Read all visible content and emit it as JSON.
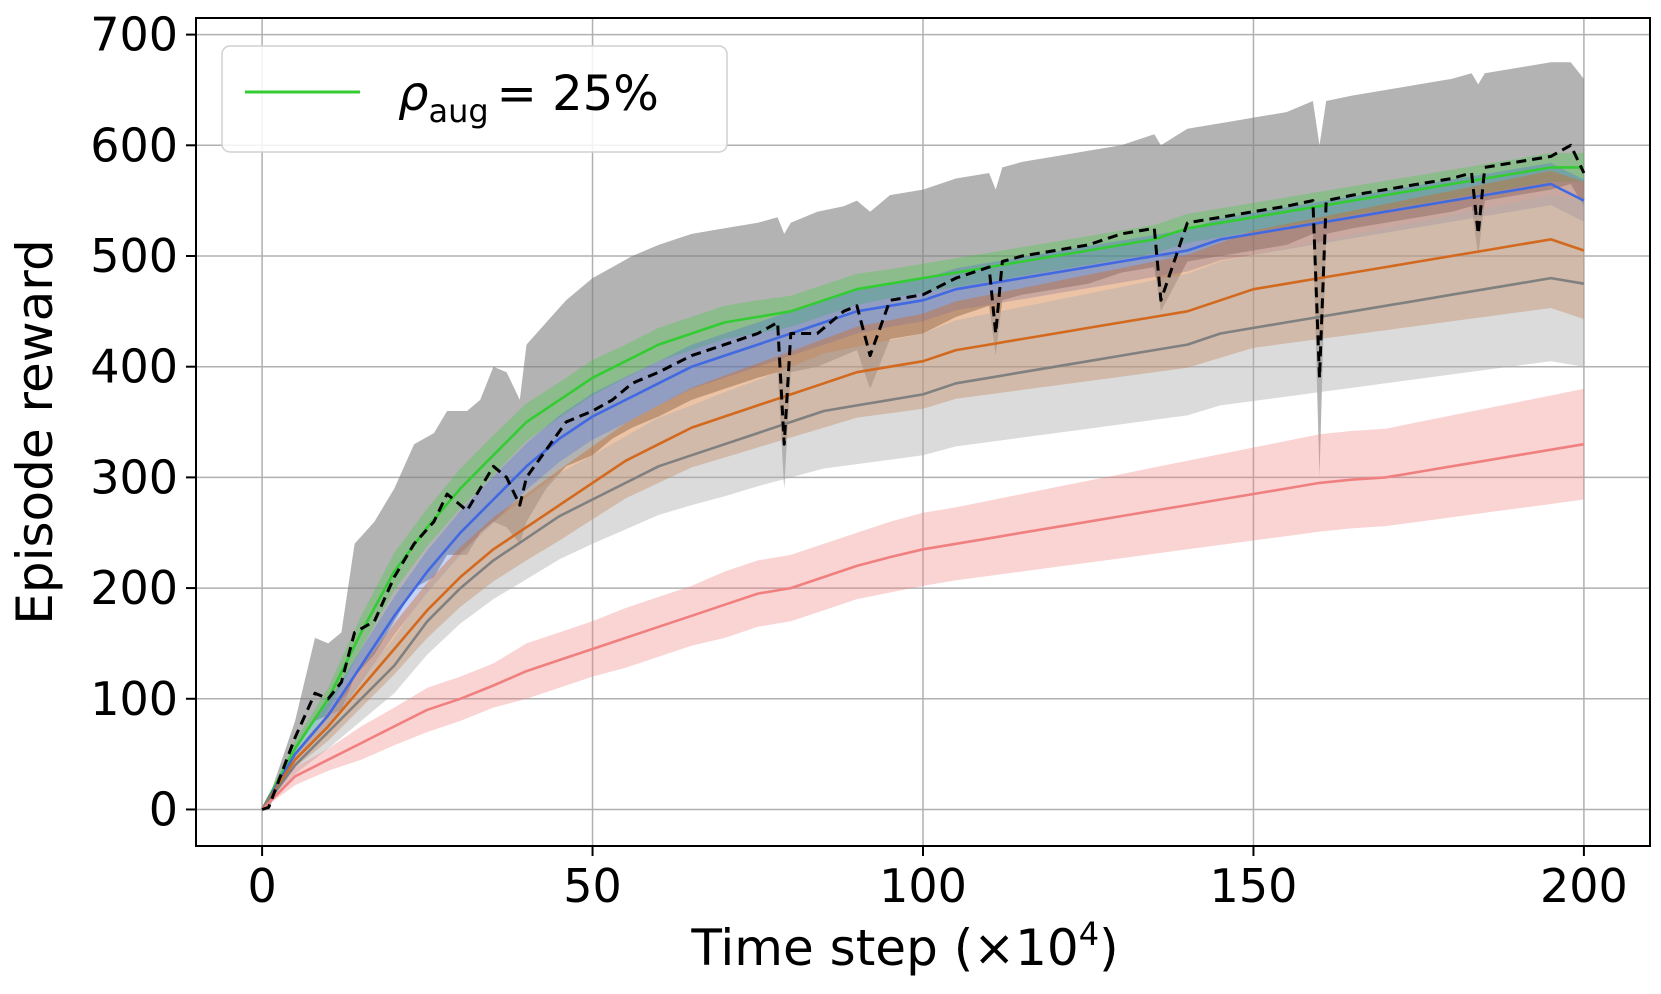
{
  "chart_data": {
    "type": "line",
    "xlabel": "Time step (×10",
    "xlabel_exponent": "4",
    "xlabel_close": ")",
    "ylabel": "Episode reward",
    "xlim": [
      -10,
      210
    ],
    "ylim": [
      -33,
      715
    ],
    "xticks": [
      0,
      50,
      100,
      150,
      200
    ],
    "xtick_labels": [
      "0",
      "50",
      "100",
      "150",
      "200"
    ],
    "yticks": [
      0,
      100,
      200,
      300,
      400,
      500,
      600,
      700
    ],
    "ytick_labels": [
      "0",
      "100",
      "200",
      "300",
      "400",
      "500",
      "600",
      "700"
    ],
    "grid": true,
    "legend": {
      "placement": "top-left",
      "symbol": "ρ",
      "subscript": "aug",
      "value_text": "= 25%",
      "color": "#33cc33"
    },
    "series": [
      {
        "name": "black-dashed",
        "color": "#000000",
        "dashed": true,
        "band_color": "#808080",
        "band_opacity": 0.6,
        "x": [
          0,
          1,
          5,
          8,
          10,
          12,
          14,
          17,
          20,
          23,
          26,
          28,
          31,
          33,
          35,
          37,
          39,
          40,
          43,
          46,
          50,
          53,
          56,
          60,
          65,
          70,
          75,
          78,
          79,
          80,
          84,
          88,
          90,
          92,
          95,
          100,
          105,
          110,
          111,
          112,
          115,
          120,
          125,
          130,
          135,
          136,
          140,
          145,
          150,
          155,
          159,
          160,
          161,
          165,
          170,
          175,
          180,
          183,
          184,
          185,
          190,
          195,
          198,
          200
        ],
        "values": [
          0,
          2,
          65,
          105,
          100,
          115,
          160,
          170,
          210,
          240,
          260,
          285,
          270,
          290,
          310,
          300,
          275,
          300,
          325,
          350,
          360,
          370,
          385,
          395,
          410,
          420,
          430,
          440,
          330,
          430,
          430,
          450,
          455,
          410,
          460,
          465,
          480,
          490,
          430,
          495,
          500,
          505,
          510,
          520,
          525,
          460,
          530,
          535,
          540,
          545,
          550,
          390,
          550,
          555,
          560,
          565,
          570,
          575,
          520,
          580,
          585,
          590,
          600,
          575
        ],
        "lower": [
          0,
          0,
          55,
          80,
          85,
          90,
          120,
          140,
          170,
          200,
          210,
          230,
          230,
          250,
          260,
          255,
          240,
          260,
          290,
          310,
          320,
          335,
          345,
          355,
          370,
          380,
          390,
          395,
          290,
          395,
          400,
          410,
          415,
          380,
          425,
          430,
          445,
          455,
          410,
          460,
          465,
          470,
          475,
          485,
          490,
          450,
          495,
          500,
          505,
          510,
          520,
          300,
          520,
          525,
          530,
          535,
          540,
          545,
          500,
          550,
          555,
          560,
          565,
          545
        ],
        "upper": [
          0,
          10,
          80,
          155,
          150,
          160,
          240,
          260,
          290,
          330,
          340,
          360,
          360,
          370,
          400,
          395,
          370,
          420,
          440,
          460,
          480,
          490,
          500,
          510,
          520,
          525,
          530,
          535,
          520,
          530,
          540,
          545,
          550,
          540,
          555,
          560,
          570,
          575,
          560,
          580,
          585,
          590,
          595,
          600,
          610,
          600,
          615,
          620,
          625,
          630,
          640,
          600,
          640,
          645,
          650,
          655,
          660,
          665,
          655,
          665,
          670,
          675,
          675,
          660
        ]
      },
      {
        "name": "green",
        "color": "#33cc33",
        "dashed": false,
        "band_color": "#33cc33",
        "band_opacity": 0.3,
        "x": [
          0,
          5,
          10,
          15,
          20,
          25,
          30,
          35,
          40,
          45,
          50,
          55,
          60,
          65,
          70,
          75,
          80,
          85,
          90,
          95,
          100,
          105,
          110,
          115,
          120,
          125,
          130,
          135,
          140,
          145,
          150,
          155,
          160,
          165,
          170,
          175,
          180,
          185,
          190,
          195,
          200
        ],
        "values": [
          0,
          55,
          100,
          160,
          215,
          255,
          290,
          320,
          350,
          370,
          390,
          405,
          420,
          430,
          440,
          445,
          450,
          460,
          470,
          475,
          480,
          485,
          490,
          495,
          500,
          505,
          510,
          515,
          525,
          530,
          535,
          540,
          545,
          550,
          555,
          560,
          565,
          570,
          575,
          580,
          580
        ],
        "lower": [
          0,
          48,
          90,
          145,
          198,
          238,
          272,
          302,
          333,
          354,
          374,
          390,
          405,
          415,
          425,
          430,
          436,
          446,
          456,
          462,
          467,
          472,
          477,
          482,
          487,
          492,
          497,
          502,
          512,
          517,
          522,
          527,
          532,
          537,
          542,
          547,
          552,
          557,
          562,
          567,
          567
        ],
        "upper": [
          0,
          62,
          110,
          175,
          232,
          272,
          308,
          338,
          367,
          386,
          406,
          420,
          435,
          445,
          455,
          460,
          464,
          474,
          484,
          488,
          493,
          498,
          503,
          508,
          513,
          518,
          523,
          528,
          538,
          543,
          548,
          553,
          558,
          563,
          568,
          573,
          578,
          583,
          588,
          593,
          593
        ]
      },
      {
        "name": "blue",
        "color": "#4169e1",
        "dashed": false,
        "band_color": "#4169e1",
        "band_opacity": 0.3,
        "x": [
          0,
          5,
          10,
          15,
          20,
          25,
          30,
          35,
          40,
          45,
          50,
          55,
          60,
          65,
          70,
          75,
          80,
          85,
          90,
          95,
          100,
          105,
          110,
          115,
          120,
          125,
          130,
          135,
          140,
          145,
          150,
          155,
          160,
          165,
          170,
          175,
          180,
          185,
          190,
          195,
          200
        ],
        "values": [
          0,
          50,
          85,
          130,
          175,
          215,
          250,
          280,
          310,
          335,
          355,
          370,
          385,
          400,
          410,
          420,
          430,
          440,
          450,
          455,
          460,
          470,
          475,
          480,
          485,
          490,
          495,
          500,
          505,
          515,
          520,
          525,
          530,
          535,
          540,
          545,
          550,
          555,
          560,
          565,
          550
        ],
        "lower": [
          0,
          43,
          73,
          115,
          158,
          196,
          230,
          259,
          289,
          314,
          334,
          349,
          365,
          380,
          390,
          400,
          410,
          420,
          430,
          436,
          441,
          451,
          456,
          461,
          466,
          471,
          476,
          481,
          486,
          496,
          501,
          506,
          511,
          516,
          521,
          526,
          531,
          536,
          541,
          546,
          531
        ],
        "upper": [
          0,
          57,
          97,
          145,
          192,
          234,
          270,
          301,
          331,
          356,
          376,
          391,
          405,
          420,
          430,
          440,
          450,
          460,
          470,
          474,
          479,
          489,
          494,
          499,
          504,
          509,
          514,
          519,
          524,
          534,
          539,
          544,
          549,
          554,
          559,
          564,
          569,
          574,
          579,
          584,
          569
        ]
      },
      {
        "name": "orange",
        "color": "#d2691e",
        "dashed": false,
        "band_color": "#d2691e",
        "band_opacity": 0.4,
        "x": [
          0,
          5,
          10,
          15,
          20,
          25,
          30,
          35,
          40,
          45,
          50,
          55,
          60,
          65,
          70,
          75,
          80,
          85,
          90,
          95,
          100,
          105,
          110,
          115,
          120,
          125,
          130,
          135,
          140,
          145,
          150,
          155,
          160,
          165,
          170,
          175,
          180,
          185,
          190,
          195,
          200
        ],
        "values": [
          0,
          45,
          75,
          110,
          145,
          180,
          210,
          235,
          255,
          275,
          295,
          315,
          330,
          345,
          355,
          365,
          375,
          385,
          395,
          400,
          405,
          415,
          420,
          425,
          430,
          435,
          440,
          445,
          450,
          460,
          470,
          475,
          480,
          485,
          490,
          495,
          500,
          505,
          510,
          515,
          505
        ],
        "lower": [
          0,
          38,
          62,
          92,
          122,
          155,
          183,
          206,
          225,
          243,
          262,
          281,
          295,
          309,
          318,
          327,
          336,
          345,
          354,
          358,
          362,
          371,
          375,
          379,
          383,
          387,
          391,
          395,
          399,
          408,
          417,
          421,
          425,
          429,
          433,
          437,
          441,
          445,
          449,
          453,
          443
        ],
        "upper": [
          0,
          52,
          88,
          128,
          168,
          205,
          237,
          264,
          285,
          307,
          328,
          349,
          365,
          381,
          392,
          403,
          414,
          425,
          436,
          442,
          448,
          459,
          465,
          471,
          477,
          483,
          489,
          495,
          501,
          512,
          523,
          529,
          535,
          541,
          547,
          553,
          559,
          565,
          571,
          577,
          567
        ]
      },
      {
        "name": "gray",
        "color": "#808080",
        "dashed": false,
        "band_color": "#b0b0b0",
        "band_opacity": 0.45,
        "x": [
          0,
          5,
          10,
          15,
          20,
          25,
          30,
          35,
          40,
          45,
          50,
          55,
          60,
          65,
          70,
          75,
          80,
          85,
          90,
          95,
          100,
          105,
          110,
          115,
          120,
          125,
          130,
          135,
          140,
          145,
          150,
          155,
          160,
          165,
          170,
          175,
          180,
          185,
          190,
          195,
          200
        ],
        "values": [
          0,
          40,
          70,
          100,
          130,
          170,
          200,
          225,
          245,
          265,
          280,
          295,
          310,
          320,
          330,
          340,
          350,
          360,
          365,
          370,
          375,
          385,
          390,
          395,
          400,
          405,
          410,
          415,
          420,
          430,
          435,
          440,
          445,
          450,
          455,
          460,
          465,
          470,
          475,
          480,
          475
        ],
        "lower": [
          0,
          32,
          55,
          80,
          105,
          140,
          168,
          190,
          208,
          226,
          240,
          253,
          266,
          275,
          283,
          292,
          300,
          308,
          312,
          316,
          320,
          328,
          332,
          336,
          340,
          344,
          348,
          352,
          356,
          365,
          369,
          373,
          377,
          381,
          385,
          389,
          393,
          397,
          401,
          405,
          400
        ],
        "upper": [
          0,
          48,
          85,
          120,
          155,
          200,
          232,
          260,
          282,
          304,
          320,
          337,
          354,
          365,
          377,
          388,
          400,
          412,
          418,
          424,
          430,
          442,
          448,
          454,
          460,
          466,
          472,
          478,
          484,
          495,
          501,
          507,
          513,
          519,
          525,
          531,
          537,
          543,
          549,
          555,
          550
        ]
      },
      {
        "name": "red",
        "color": "#f08080",
        "dashed": false,
        "band_color": "#f08080",
        "band_opacity": 0.35,
        "x": [
          0,
          5,
          10,
          15,
          20,
          25,
          30,
          35,
          40,
          45,
          50,
          55,
          60,
          65,
          70,
          75,
          80,
          85,
          90,
          95,
          100,
          105,
          110,
          115,
          120,
          125,
          130,
          135,
          140,
          145,
          150,
          155,
          160,
          165,
          170,
          175,
          180,
          185,
          190,
          195,
          200
        ],
        "values": [
          0,
          30,
          45,
          60,
          75,
          90,
          100,
          112,
          125,
          135,
          145,
          155,
          165,
          175,
          185,
          195,
          200,
          210,
          220,
          228,
          235,
          240,
          245,
          250,
          255,
          260,
          265,
          270,
          275,
          280,
          285,
          290,
          295,
          298,
          300,
          305,
          310,
          315,
          320,
          325,
          330
        ],
        "lower": [
          0,
          22,
          35,
          45,
          58,
          70,
          80,
          92,
          100,
          110,
          120,
          128,
          138,
          148,
          155,
          165,
          170,
          180,
          190,
          196,
          202,
          207,
          211,
          215,
          219,
          223,
          227,
          231,
          235,
          239,
          243,
          247,
          251,
          254,
          256,
          260,
          264,
          268,
          272,
          276,
          280
        ],
        "upper": [
          0,
          38,
          55,
          75,
          92,
          110,
          120,
          132,
          150,
          160,
          170,
          182,
          192,
          202,
          215,
          225,
          230,
          240,
          250,
          260,
          268,
          273,
          279,
          285,
          291,
          297,
          303,
          309,
          315,
          321,
          327,
          333,
          339,
          342,
          344,
          350,
          356,
          362,
          368,
          374,
          380
        ]
      }
    ]
  }
}
